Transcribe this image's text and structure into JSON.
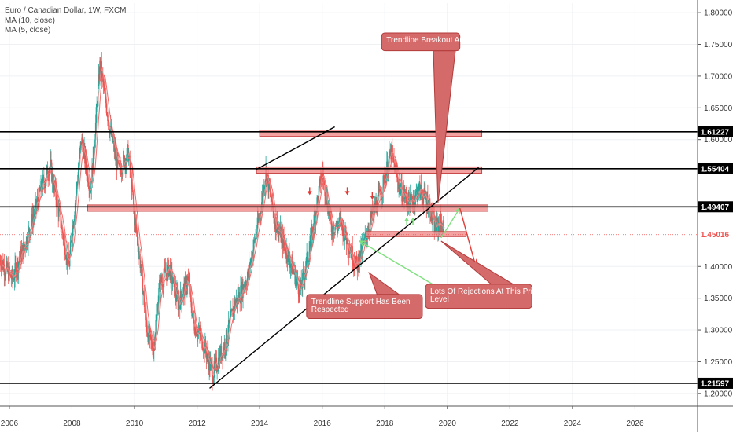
{
  "legend": {
    "title": "Euro / Canadian Dollar, 1W, FXCM",
    "ma10": "MA (10, close)",
    "ma5": "MA (5, close)"
  },
  "colors": {
    "up": "#26a69a",
    "down": "#ef5350",
    "ma10": "#ef6c6c",
    "ma5": "#ef9a9a",
    "zone_fill": "#f08a8a",
    "zone_stroke": "#c94a4a",
    "note_fill": "#d46a6a",
    "note_stroke": "#b33b3b",
    "arrow_green": "#7ee07e",
    "arrow_red": "#e53935",
    "level_line": "#000000"
  },
  "chart_data": {
    "type": "candlestick",
    "title": "Euro / Canadian Dollar, 1W, FXCM",
    "x_range": [
      2005.7,
      2028.0
    ],
    "y_range": [
      1.18,
      1.815
    ],
    "x_ticks": [
      {
        "v": 2006,
        "label": "2006"
      },
      {
        "v": 2008,
        "label": "2008"
      },
      {
        "v": 2010,
        "label": "2010"
      },
      {
        "v": 2012,
        "label": "2012"
      },
      {
        "v": 2014,
        "label": "2014"
      },
      {
        "v": 2016,
        "label": "2016"
      },
      {
        "v": 2018,
        "label": "2018"
      },
      {
        "v": 2020,
        "label": "2020"
      },
      {
        "v": 2022,
        "label": "2022"
      },
      {
        "v": 2024,
        "label": "2024"
      },
      {
        "v": 2026,
        "label": "2026"
      }
    ],
    "y_ticks": [
      {
        "v": 1.8,
        "label": "1.80000"
      },
      {
        "v": 1.75,
        "label": "1.75000"
      },
      {
        "v": 1.7,
        "label": "1.70000"
      },
      {
        "v": 1.65,
        "label": "1.65000"
      },
      {
        "v": 1.6,
        "label": "1.60000"
      },
      {
        "v": 1.4,
        "label": "1.40000"
      },
      {
        "v": 1.35,
        "label": "1.35000"
      },
      {
        "v": 1.3,
        "label": "1.30000"
      },
      {
        "v": 1.25,
        "label": "1.25000"
      },
      {
        "v": 1.2,
        "label": "1.20000"
      }
    ],
    "price_path": [
      [
        2005.7,
        1.41
      ],
      [
        2006.1,
        1.38
      ],
      [
        2006.6,
        1.45
      ],
      [
        2007.0,
        1.52
      ],
      [
        2007.3,
        1.56
      ],
      [
        2007.6,
        1.48
      ],
      [
        2007.9,
        1.4
      ],
      [
        2008.1,
        1.5
      ],
      [
        2008.3,
        1.6
      ],
      [
        2008.6,
        1.52
      ],
      [
        2008.9,
        1.72
      ],
      [
        2009.2,
        1.62
      ],
      [
        2009.5,
        1.55
      ],
      [
        2009.8,
        1.58
      ],
      [
        2010.0,
        1.48
      ],
      [
        2010.2,
        1.4
      ],
      [
        2010.4,
        1.3
      ],
      [
        2010.6,
        1.27
      ],
      [
        2010.8,
        1.37
      ],
      [
        2011.1,
        1.4
      ],
      [
        2011.4,
        1.34
      ],
      [
        2011.7,
        1.38
      ],
      [
        2011.9,
        1.31
      ],
      [
        2012.2,
        1.28
      ],
      [
        2012.5,
        1.23
      ],
      [
        2012.9,
        1.28
      ],
      [
        2013.2,
        1.34
      ],
      [
        2013.6,
        1.38
      ],
      [
        2014.0,
        1.48
      ],
      [
        2014.2,
        1.55
      ],
      [
        2014.5,
        1.47
      ],
      [
        2014.9,
        1.42
      ],
      [
        2015.3,
        1.36
      ],
      [
        2015.6,
        1.43
      ],
      [
        2016.0,
        1.55
      ],
      [
        2016.3,
        1.46
      ],
      [
        2016.6,
        1.47
      ],
      [
        2016.8,
        1.44
      ],
      [
        2017.1,
        1.4
      ],
      [
        2017.3,
        1.43
      ],
      [
        2017.6,
        1.48
      ],
      [
        2017.9,
        1.52
      ],
      [
        2018.2,
        1.58
      ],
      [
        2018.5,
        1.52
      ],
      [
        2018.8,
        1.5
      ],
      [
        2019.1,
        1.52
      ],
      [
        2019.4,
        1.5
      ],
      [
        2019.6,
        1.46
      ],
      [
        2019.8,
        1.47
      ],
      [
        2019.9,
        1.45
      ]
    ],
    "horizontal_levels": [
      {
        "value": 1.61227,
        "label": "1.61227"
      },
      {
        "value": 1.55404,
        "label": "1.55404"
      },
      {
        "value": 1.49407,
        "label": "1.49407"
      },
      {
        "value": 1.21597,
        "label": "1.21597"
      }
    ],
    "current_price": {
      "value": 1.45016,
      "label": "1.45016"
    },
    "zones": [
      {
        "x0": 2014.0,
        "x1": 2021.1,
        "y0": 1.605,
        "y1": 1.615
      },
      {
        "x0": 2013.9,
        "x1": 2021.1,
        "y0": 1.547,
        "y1": 1.557
      },
      {
        "x0": 2008.5,
        "x1": 2021.3,
        "y0": 1.487,
        "y1": 1.497
      },
      {
        "x0": 2017.4,
        "x1": 2020.6,
        "y0": 1.447,
        "y1": 1.455
      }
    ],
    "trendlines": [
      {
        "x0": 2012.4,
        "y0": 1.208,
        "x1": 2021.0,
        "y1": 1.556
      },
      {
        "x0": 2013.9,
        "y0": 1.553,
        "x1": 2016.4,
        "y1": 1.62
      }
    ],
    "annotations": [
      {
        "lines": [
          "Trendline Breakout And Retest!"
        ],
        "x0": 2017.9,
        "x1": 2020.4,
        "y_top": 1.768,
        "y_bottom": 1.74,
        "pointer": [
          2019.7,
          1.5
        ]
      },
      {
        "lines": [
          "Trendline Support Has Been",
          "Respected"
        ],
        "x0": 2015.5,
        "x1": 2019.2,
        "y_top": 1.356,
        "y_bottom": 1.318,
        "pointer": [
          2017.5,
          1.39
        ]
      },
      {
        "lines": [
          "Lots Of Rejections At This Price",
          "Level"
        ],
        "x0": 2019.3,
        "x1": 2022.7,
        "y_top": 1.372,
        "y_bottom": 1.334,
        "pointer": [
          2019.8,
          1.44
        ]
      }
    ],
    "marker_arrows": {
      "down": [
        [
          2015.6,
          1.515
        ],
        [
          2016.8,
          1.515
        ],
        [
          2017.6,
          1.508
        ]
      ],
      "up": [
        [
          2018.7,
          1.475
        ],
        [
          2018.9,
          1.475
        ]
      ]
    },
    "projection_arrows": [
      {
        "color": "green",
        "points": [
          [
            2019.8,
            1.445
          ],
          [
            2020.4,
            1.492
          ]
        ]
      },
      {
        "color": "red",
        "points": [
          [
            2020.4,
            1.492
          ],
          [
            2020.9,
            1.402
          ]
        ]
      },
      {
        "color": "green",
        "points": [
          [
            2019.6,
            1.37
          ],
          [
            2017.2,
            1.44
          ]
        ]
      }
    ]
  }
}
